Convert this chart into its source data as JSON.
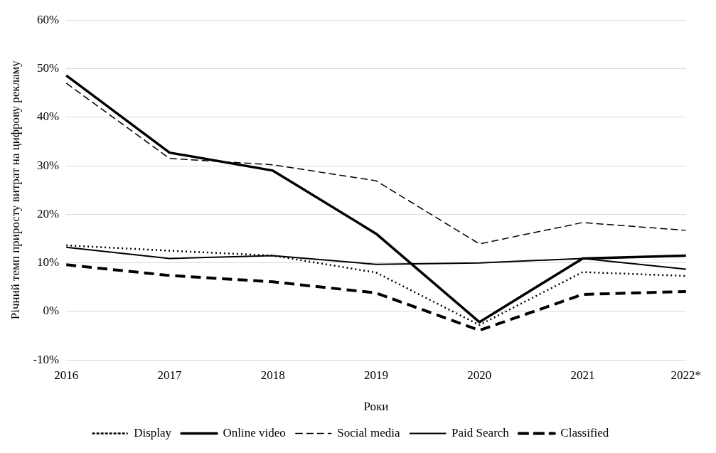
{
  "chart_data": {
    "type": "line",
    "xlabel": "Роки",
    "ylabel": "Річний темп приросту витрат на цифрову рекламу",
    "categories": [
      "2016",
      "2017",
      "2018",
      "2019",
      "2020",
      "2021",
      "2022*"
    ],
    "series": [
      {
        "name": "Display",
        "color": "#000000",
        "line_style": "dotted",
        "values": [
          13.6,
          12.5,
          11.5,
          8.0,
          -2.8,
          8.1,
          7.3
        ]
      },
      {
        "name": "Online video",
        "color": "#000000",
        "line_style": "solid",
        "values": [
          48.6,
          32.7,
          29.0,
          16.0,
          -2.2,
          10.9,
          11.5
        ]
      },
      {
        "name": "Social media",
        "color": "#000000",
        "line_style": "dashed",
        "values": [
          47.0,
          31.5,
          30.2,
          26.9,
          13.9,
          18.3,
          16.7
        ]
      },
      {
        "name": "Paid Search",
        "color": "#000000",
        "line_style": "solid",
        "values": [
          13.2,
          10.9,
          11.5,
          9.7,
          10.0,
          10.9,
          8.7
        ]
      },
      {
        "name": "Classified",
        "color": "#000000",
        "line_style": "dashed",
        "values": [
          9.6,
          7.4,
          6.1,
          3.8,
          -3.9,
          3.5,
          4.1
        ]
      }
    ],
    "ylim": [
      -10,
      60
    ],
    "yticks": [
      {
        "value": -10,
        "label": "-10%"
      },
      {
        "value": 0,
        "label": "0%"
      },
      {
        "value": 10,
        "label": "10%"
      },
      {
        "value": 20,
        "label": "20%"
      },
      {
        "value": 30,
        "label": "30%"
      },
      {
        "value": 40,
        "label": "40%"
      },
      {
        "value": 50,
        "label": "50%"
      },
      {
        "value": 60,
        "label": "60%"
      }
    ],
    "grid": "y",
    "legend": "bottom",
    "marker": "none"
  }
}
